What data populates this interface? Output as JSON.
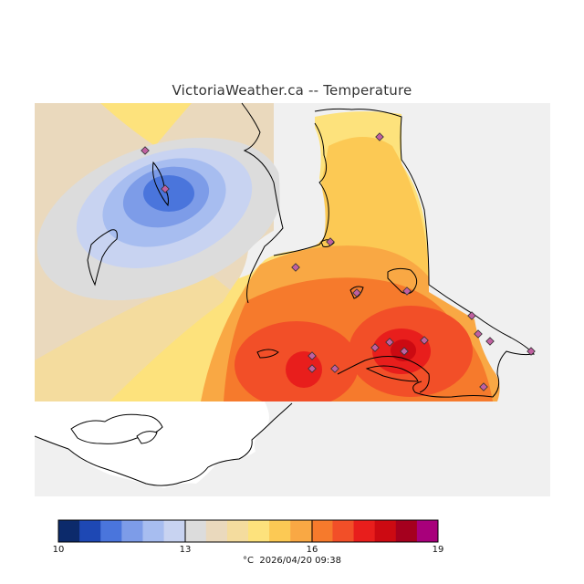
{
  "title": "VictoriaWeather.ca -- Temperature",
  "legend": {
    "min": "10",
    "t1": "13",
    "t2": "16",
    "max": "19",
    "unit": "°C",
    "timestamp": "2026/04/20 09:38",
    "colors": [
      "#0c2a6b",
      "#1e48b4",
      "#4a75dc",
      "#7d9ce8",
      "#a7bdf0",
      "#c8d3f1",
      "#dcdcdc",
      "#ead9bd",
      "#f4dc9e",
      "#fde27c",
      "#fcc954",
      "#f9a844",
      "#f67a2c",
      "#f24f28",
      "#e81e1c",
      "#cc0a12",
      "#a5001e",
      "#a8007b"
    ]
  },
  "colors": {
    "background": "#f0f0f0",
    "land": "#ffffff",
    "station": "#c060a0"
  }
}
